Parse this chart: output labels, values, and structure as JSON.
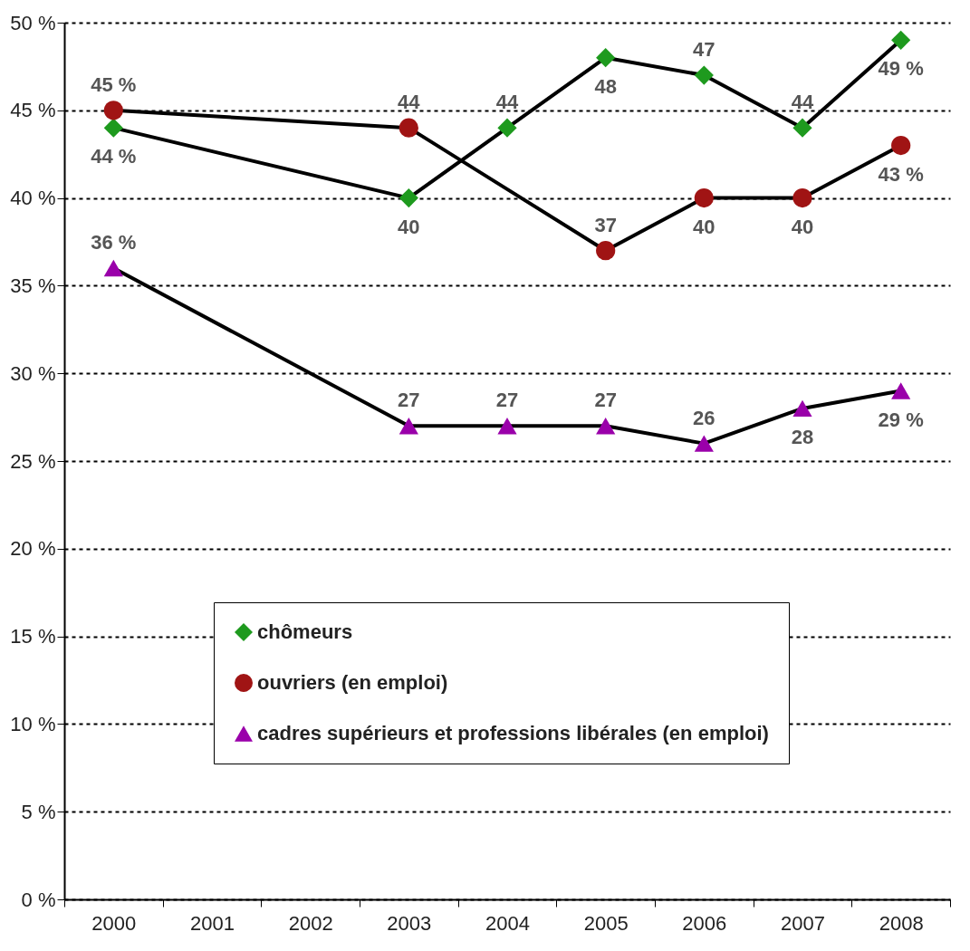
{
  "chart_data": {
    "type": "line",
    "categories": [
      "2000",
      "2001",
      "2002",
      "2003",
      "2004",
      "2005",
      "2006",
      "2007",
      "2008"
    ],
    "series": [
      {
        "name": "chômeurs",
        "color": "#1e9a1e",
        "marker": "diamond",
        "values": [
          44,
          null,
          null,
          40,
          44,
          48,
          47,
          44,
          49
        ],
        "value_labels": [
          "44 %",
          null,
          null,
          "40",
          "44",
          "48",
          "47",
          "44",
          "49 %"
        ]
      },
      {
        "name": "ouvriers (en emploi)",
        "color": "#a01414",
        "marker": "circle",
        "values": [
          45,
          null,
          null,
          44,
          null,
          37,
          40,
          40,
          43
        ],
        "value_labels": [
          "45 %",
          null,
          null,
          "44",
          null,
          "37",
          "40",
          "40",
          "43 %"
        ]
      },
      {
        "name": "cadres supérieurs et professions libérales (en emploi)",
        "color": "#9a00aa",
        "marker": "triangle",
        "values": [
          36,
          null,
          null,
          27,
          27,
          27,
          26,
          28,
          29
        ],
        "value_labels": [
          "36 %",
          null,
          null,
          "27",
          "27",
          "27",
          "26",
          "28",
          "29 %"
        ]
      }
    ],
    "ylim": [
      0,
      50
    ],
    "yticks": [
      {
        "value": 0,
        "label": "0 %"
      },
      {
        "value": 5,
        "label": "5 %"
      },
      {
        "value": 10,
        "label": "10 %"
      },
      {
        "value": 15,
        "label": "15 %"
      },
      {
        "value": 20,
        "label": "20 %"
      },
      {
        "value": 25,
        "label": "25 %"
      },
      {
        "value": 30,
        "label": "30 %"
      },
      {
        "value": 35,
        "label": "35 %"
      },
      {
        "value": 40,
        "label": "40 %"
      },
      {
        "value": 45,
        "label": "45 %"
      },
      {
        "value": 50,
        "label": "50 %"
      }
    ],
    "grid": "y",
    "legend": "bottom",
    "line_style": "solid"
  }
}
